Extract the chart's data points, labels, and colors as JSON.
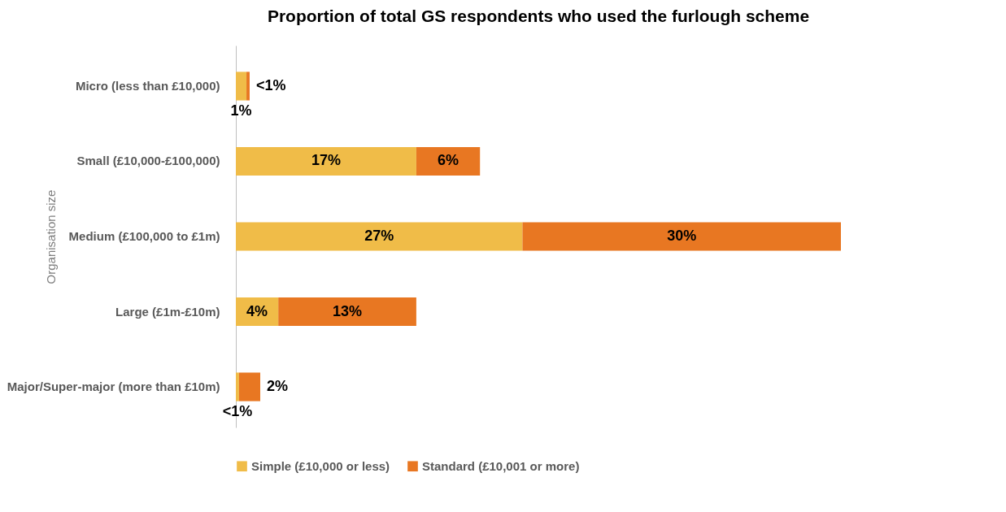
{
  "chart_data": {
    "type": "bar",
    "orientation": "horizontal",
    "stacked": true,
    "title": "Proportion of total GS respondents who used the furlough scheme",
    "ylabel": "Organisation size",
    "categories": [
      "Micro (less than £10,000)",
      "Small (£10,000-£100,000)",
      "Medium (£100,000 to £1m)",
      "Large (£1m-£10m)",
      "Major/Super-major (more than £10m)"
    ],
    "series": [
      {
        "name": "Simple (£10,000 or less)",
        "color": "#f0bc48",
        "values": [
          1,
          17,
          27,
          4,
          0.3
        ],
        "value_labels": [
          "1%",
          "17%",
          "27%",
          "4%",
          "<1%"
        ]
      },
      {
        "name": "Standard (£10,001 or more)",
        "color": "#e87722",
        "values": [
          0.3,
          6,
          30,
          13,
          2
        ],
        "value_labels": [
          "<1%",
          "6%",
          "30%",
          "13%",
          "2%"
        ]
      }
    ],
    "legend": "bottom"
  }
}
